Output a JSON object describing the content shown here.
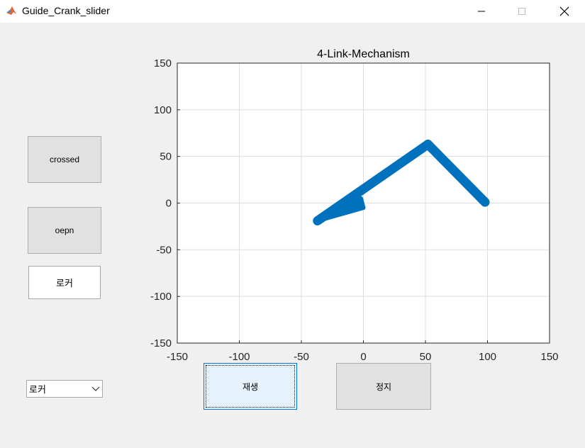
{
  "window": {
    "title": "Guide_Crank_slider"
  },
  "buttons": {
    "crossed": "crossed",
    "open": "oepn",
    "play": "재생",
    "stop": "정지"
  },
  "edit": {
    "value": "로커"
  },
  "popup": {
    "selected": "로커"
  },
  "axes": {
    "title": "4-Link-Mechanism",
    "xlim": [
      -150,
      150
    ],
    "ylim": [
      -150,
      150
    ],
    "xticks": [
      "-150",
      "-100",
      "-50",
      "0",
      "50",
      "100",
      "150"
    ],
    "yticks": [
      "150",
      "100",
      "50",
      "0",
      "-50",
      "-100",
      "-150"
    ],
    "grid": true
  },
  "chart_data": {
    "type": "line",
    "title": "4-Link-Mechanism",
    "xlim": [
      -150,
      150
    ],
    "ylim": [
      -150,
      150
    ],
    "color": "#0072bd",
    "links": [
      {
        "x": [
          -37,
          0,
          -2,
          -37
        ],
        "y": [
          -19,
          -5,
          5,
          -19
        ]
      },
      {
        "x": [
          -37,
          52
        ],
        "y": [
          -19,
          63
        ]
      },
      {
        "x": [
          52,
          98
        ],
        "y": [
          63,
          1
        ]
      }
    ]
  }
}
